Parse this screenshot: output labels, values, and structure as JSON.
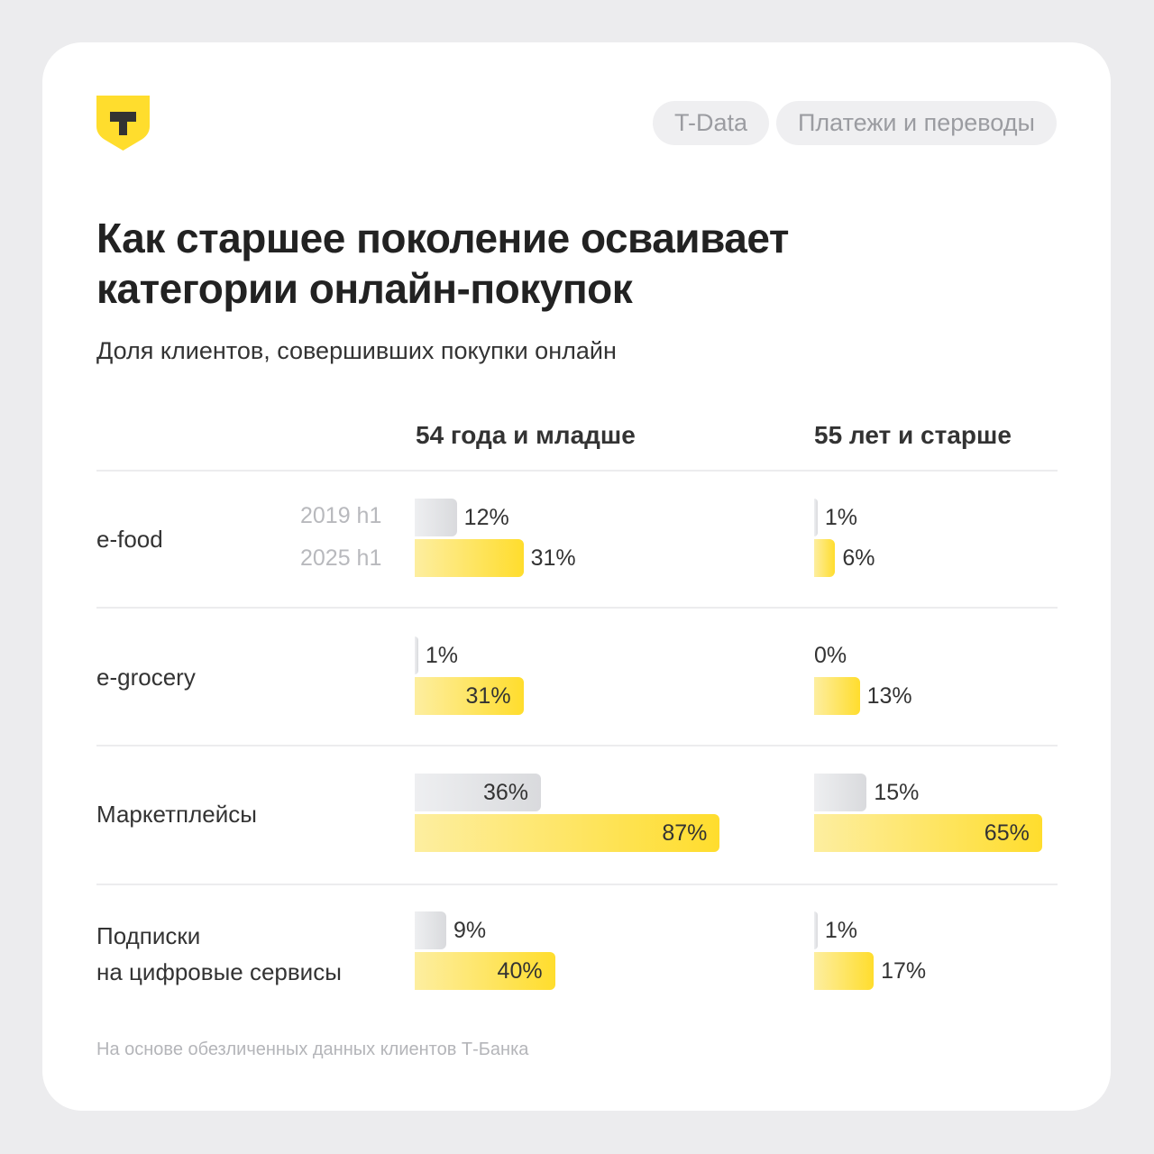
{
  "brand": {
    "logo_letter": "T",
    "color": "#ffdd2d"
  },
  "tags": [
    "T-Data",
    "Платежи и переводы"
  ],
  "title_lines": [
    "Как старшее поколение осваивает",
    "категории онлайн-покупок"
  ],
  "subtitle": "Доля клиентов, совершивших покупки онлайн",
  "footer": "На основе обезличенных данных клиентов Т-Банка",
  "chart_data": {
    "type": "bar",
    "orientation": "horizontal",
    "unit": "%",
    "columns": [
      "54 года и младше",
      "55 лет и старше"
    ],
    "periods": [
      "2019 h1",
      "2025 h1"
    ],
    "period_colors": {
      "2019 h1": "#d9dadd",
      "2025 h1": "#ffdd2d"
    },
    "categories": [
      {
        "name": "e-food",
        "lines": [
          "e-food"
        ],
        "values": [
          [
            12,
            31
          ],
          [
            1,
            6
          ]
        ],
        "label_inside": [
          [
            false,
            false
          ],
          [
            false,
            false
          ]
        ]
      },
      {
        "name": "e-grocery",
        "lines": [
          "e-grocery"
        ],
        "values": [
          [
            1,
            31
          ],
          [
            0,
            13
          ]
        ],
        "label_inside": [
          [
            false,
            true
          ],
          [
            false,
            false
          ]
        ]
      },
      {
        "name": "Маркетплейсы",
        "lines": [
          "Маркетплейсы"
        ],
        "values": [
          [
            36,
            87
          ],
          [
            15,
            65
          ]
        ],
        "label_inside": [
          [
            true,
            true
          ],
          [
            false,
            true
          ]
        ]
      },
      {
        "name": "Подписки на цифровые сервисы",
        "lines": [
          "Подписки",
          "на цифровые сервисы"
        ],
        "values": [
          [
            9,
            40
          ],
          [
            1,
            17
          ]
        ],
        "label_inside": [
          [
            false,
            true
          ],
          [
            false,
            false
          ]
        ]
      }
    ]
  }
}
